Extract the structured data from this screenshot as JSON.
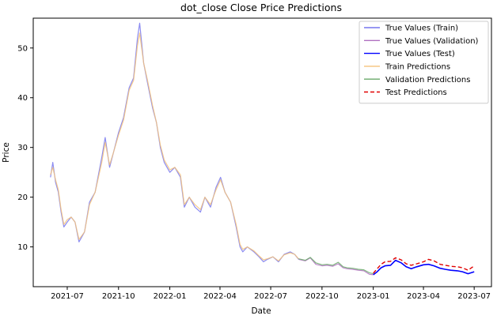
{
  "chart_data": {
    "type": "line",
    "title": "dot_close Close Price Predictions",
    "xlabel": "Date",
    "ylabel": "Price",
    "xlim": [
      "2021-05-01",
      "2023-08-01"
    ],
    "ylim": [
      2,
      56
    ],
    "x_ticks": [
      {
        "date": "2021-07-01",
        "label": "2021-07"
      },
      {
        "date": "2021-10-01",
        "label": "2021-10"
      },
      {
        "date": "2022-01-01",
        "label": "2022-01"
      },
      {
        "date": "2022-04-01",
        "label": "2022-04"
      },
      {
        "date": "2022-07-01",
        "label": "2022-07"
      },
      {
        "date": "2022-10-01",
        "label": "2022-10"
      },
      {
        "date": "2023-01-01",
        "label": "2023-01"
      },
      {
        "date": "2023-04-01",
        "label": "2023-04"
      },
      {
        "date": "2023-07-01",
        "label": "2023-07"
      }
    ],
    "y_ticks": [
      {
        "value": 10,
        "label": "10"
      },
      {
        "value": 20,
        "label": "20"
      },
      {
        "value": 30,
        "label": "30"
      },
      {
        "value": 40,
        "label": "40"
      },
      {
        "value": 50,
        "label": "50"
      }
    ],
    "grid": false,
    "legend_position": "top-right",
    "series": [
      {
        "name": "True Values (Train)",
        "color": "#7777ee",
        "style": "solid",
        "x": [
          "2021-06-01",
          "2021-06-05",
          "2021-06-10",
          "2021-06-15",
          "2021-06-20",
          "2021-06-25",
          "2021-07-01",
          "2021-07-08",
          "2021-07-15",
          "2021-07-22",
          "2021-08-01",
          "2021-08-10",
          "2021-08-20",
          "2021-09-01",
          "2021-09-07",
          "2021-09-15",
          "2021-09-22",
          "2021-10-01",
          "2021-10-10",
          "2021-10-20",
          "2021-10-28",
          "2021-11-04",
          "2021-11-08",
          "2021-11-15",
          "2021-11-22",
          "2021-12-01",
          "2021-12-08",
          "2021-12-15",
          "2021-12-22",
          "2022-01-01",
          "2022-01-10",
          "2022-01-20",
          "2022-01-27",
          "2022-02-05",
          "2022-02-15",
          "2022-02-25",
          "2022-03-05",
          "2022-03-15",
          "2022-03-25",
          "2022-04-02",
          "2022-04-10",
          "2022-04-20",
          "2022-04-30",
          "2022-05-07",
          "2022-05-12",
          "2022-05-20",
          "2022-06-01",
          "2022-06-10",
          "2022-06-18",
          "2022-06-25",
          "2022-07-05",
          "2022-07-15",
          "2022-07-25",
          "2022-08-05",
          "2022-08-13",
          "2022-08-20"
        ],
        "values": [
          24,
          27,
          23,
          21,
          17,
          14,
          15,
          16,
          15,
          11,
          13,
          19,
          21,
          28,
          32,
          26,
          29,
          33,
          36,
          42,
          44,
          52,
          55,
          47,
          43,
          38,
          35,
          30,
          27,
          25,
          26,
          24,
          18,
          20,
          18,
          17,
          20,
          18,
          22,
          24,
          21,
          19,
          14,
          10,
          9,
          10,
          9,
          8,
          7,
          7.5,
          8,
          7,
          8.5,
          9,
          8.5,
          7.5
        ]
      },
      {
        "name": "True Values (Validation)",
        "color": "#b070c0",
        "style": "solid",
        "x": [
          "2022-08-20",
          "2022-09-01",
          "2022-09-10",
          "2022-09-20",
          "2022-10-01",
          "2022-10-10",
          "2022-10-20",
          "2022-10-30",
          "2022-11-08",
          "2022-11-15",
          "2022-11-25",
          "2022-12-05",
          "2022-12-15",
          "2022-12-25",
          "2023-01-01"
        ],
        "values": [
          7.5,
          7.2,
          7.8,
          6.5,
          6.2,
          6.3,
          6.1,
          6.6,
          5.8,
          5.6,
          5.5,
          5.3,
          5.2,
          4.5,
          4.4
        ]
      },
      {
        "name": "True Values (Test)",
        "color": "#0000ff",
        "style": "solid",
        "x": [
          "2023-01-01",
          "2023-01-08",
          "2023-01-15",
          "2023-01-22",
          "2023-02-01",
          "2023-02-10",
          "2023-02-20",
          "2023-03-01",
          "2023-03-10",
          "2023-03-20",
          "2023-04-01",
          "2023-04-10",
          "2023-04-20",
          "2023-05-01",
          "2023-05-10",
          "2023-05-20",
          "2023-06-01",
          "2023-06-10",
          "2023-06-20",
          "2023-07-01"
        ],
        "values": [
          4.4,
          5.0,
          5.8,
          6.2,
          6.3,
          7.3,
          6.8,
          6.0,
          5.6,
          6.0,
          6.4,
          6.5,
          6.2,
          5.7,
          5.5,
          5.3,
          5.2,
          5.0,
          4.6,
          5.0
        ]
      },
      {
        "name": "Train Predictions",
        "color": "#f5c27a",
        "style": "solid",
        "x": [
          "2021-06-01",
          "2021-06-05",
          "2021-06-10",
          "2021-06-15",
          "2021-06-20",
          "2021-06-25",
          "2021-07-01",
          "2021-07-08",
          "2021-07-15",
          "2021-07-22",
          "2021-08-01",
          "2021-08-10",
          "2021-08-20",
          "2021-09-01",
          "2021-09-07",
          "2021-09-15",
          "2021-09-22",
          "2021-10-01",
          "2021-10-10",
          "2021-10-20",
          "2021-10-28",
          "2021-11-04",
          "2021-11-08",
          "2021-11-15",
          "2021-11-22",
          "2021-12-01",
          "2021-12-08",
          "2021-12-15",
          "2021-12-22",
          "2022-01-01",
          "2022-01-10",
          "2022-01-20",
          "2022-01-27",
          "2022-02-05",
          "2022-02-15",
          "2022-02-25",
          "2022-03-05",
          "2022-03-15",
          "2022-03-25",
          "2022-04-02",
          "2022-04-10",
          "2022-04-20",
          "2022-04-30",
          "2022-05-07",
          "2022-05-12",
          "2022-05-20",
          "2022-06-01",
          "2022-06-10",
          "2022-06-18",
          "2022-06-25",
          "2022-07-05",
          "2022-07-15",
          "2022-07-25",
          "2022-08-05",
          "2022-08-13",
          "2022-08-20"
        ],
        "values": [
          24.5,
          26,
          23.5,
          21.5,
          17.5,
          14.5,
          15.5,
          16,
          15,
          11.5,
          13,
          18.5,
          21,
          27,
          31,
          26.5,
          29,
          32.5,
          35.5,
          41.5,
          43.5,
          50.5,
          53,
          47,
          43.5,
          38.5,
          35,
          30.5,
          27.5,
          25.5,
          26,
          24.5,
          18.5,
          20,
          18.5,
          17.5,
          20,
          18.5,
          21.5,
          23.5,
          21,
          19,
          14.5,
          10.5,
          9.5,
          10,
          9.2,
          8.2,
          7.4,
          7.6,
          8,
          7.2,
          8.4,
          8.8,
          8.5,
          7.6
        ]
      },
      {
        "name": "Validation Predictions",
        "color": "#6aaa6a",
        "style": "solid",
        "x": [
          "2022-08-20",
          "2022-09-01",
          "2022-09-10",
          "2022-09-20",
          "2022-10-01",
          "2022-10-10",
          "2022-10-20",
          "2022-10-30",
          "2022-11-08",
          "2022-11-15",
          "2022-11-25",
          "2022-12-05",
          "2022-12-15",
          "2022-12-25",
          "2023-01-01"
        ],
        "values": [
          7.6,
          7.3,
          7.9,
          6.8,
          6.4,
          6.5,
          6.3,
          6.9,
          6.0,
          5.8,
          5.7,
          5.5,
          5.4,
          4.8,
          4.6
        ]
      },
      {
        "name": "Test Predictions",
        "color": "#e00000",
        "style": "dashed",
        "x": [
          "2023-01-01",
          "2023-01-08",
          "2023-01-15",
          "2023-01-22",
          "2023-02-01",
          "2023-02-10",
          "2023-02-20",
          "2023-03-01",
          "2023-03-10",
          "2023-03-20",
          "2023-04-01",
          "2023-04-10",
          "2023-04-20",
          "2023-05-01",
          "2023-05-10",
          "2023-05-20",
          "2023-06-01",
          "2023-06-10",
          "2023-06-20",
          "2023-07-01"
        ],
        "values": [
          4.7,
          5.6,
          6.5,
          7.0,
          7.1,
          7.8,
          7.4,
          6.6,
          6.3,
          6.6,
          7.0,
          7.5,
          7.2,
          6.5,
          6.3,
          6.1,
          6.0,
          5.8,
          5.3,
          6.2
        ]
      }
    ]
  }
}
